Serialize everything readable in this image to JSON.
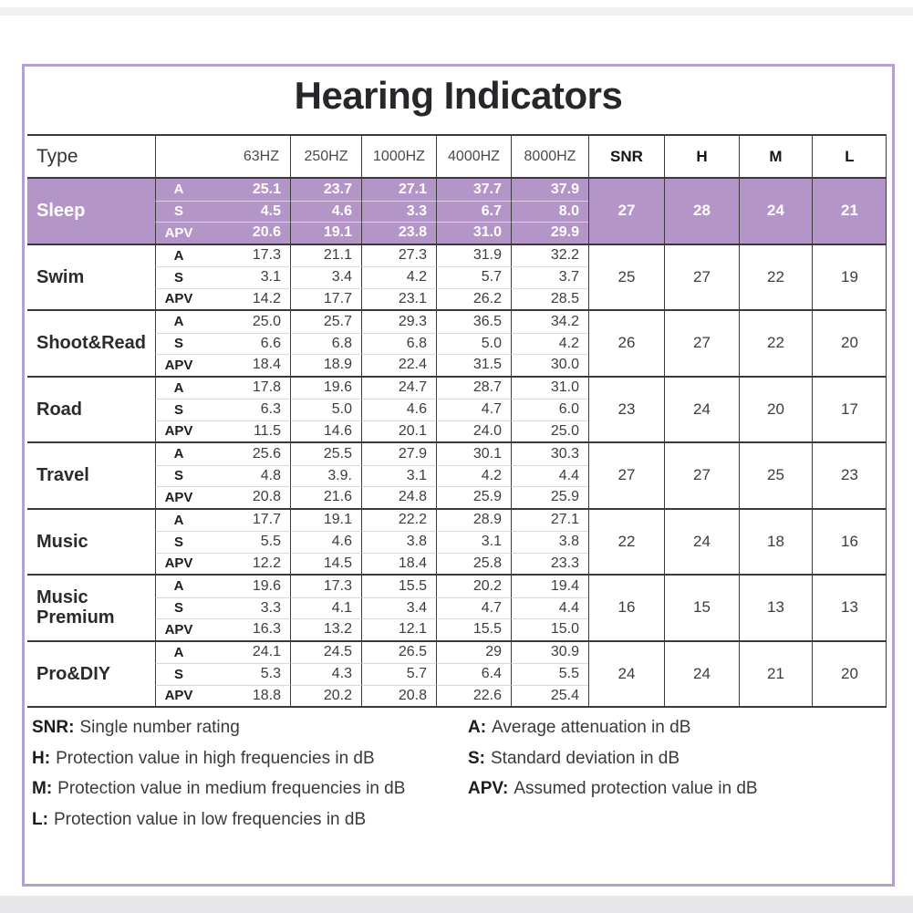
{
  "page": {
    "title": "Hearing Indicators"
  },
  "colors": {
    "highlight_row_bg": "#b495c7",
    "box_border": "#b4a1d1",
    "grid_line_dark": "#3a3a3a",
    "grid_line_light": "#d8d8d8",
    "highlight_text": "#ffffff"
  },
  "table": {
    "type_header": "Type",
    "freq_columns": [
      "63HZ",
      "250HZ",
      "1000HZ",
      "4000HZ",
      "8000HZ"
    ],
    "summary_columns": [
      "SNR",
      "H",
      "M",
      "L"
    ],
    "sub_row_labels": [
      "A",
      "S",
      "APV"
    ],
    "rows": [
      {
        "type": "Sleep",
        "highlighted": true,
        "sub_rows": [
          {
            "label": "A",
            "values": [
              "25.1",
              "23.7",
              "27.1",
              "37.7",
              "37.9"
            ]
          },
          {
            "label": "S",
            "values": [
              "4.5",
              "4.6",
              "3.3",
              "6.7",
              "8.0"
            ]
          },
          {
            "label": "APV",
            "values": [
              "20.6",
              "19.1",
              "23.8",
              "31.0",
              "29.9"
            ]
          }
        ],
        "SNR": "27",
        "H": "28",
        "M": "24",
        "L": "21"
      },
      {
        "type": "Swim",
        "highlighted": false,
        "sub_rows": [
          {
            "label": "A",
            "values": [
              "17.3",
              "21.1",
              "27.3",
              "31.9",
              "32.2"
            ]
          },
          {
            "label": "S",
            "values": [
              "3.1",
              "3.4",
              "4.2",
              "5.7",
              "3.7"
            ]
          },
          {
            "label": "APV",
            "values": [
              "14.2",
              "17.7",
              "23.1",
              "26.2",
              "28.5"
            ]
          }
        ],
        "SNR": "25",
        "H": "27",
        "M": "22",
        "L": "19"
      },
      {
        "type": "Shoot&Read",
        "highlighted": false,
        "sub_rows": [
          {
            "label": "A",
            "values": [
              "25.0",
              "25.7",
              "29.3",
              "36.5",
              "34.2"
            ]
          },
          {
            "label": "S",
            "values": [
              "6.6",
              "6.8",
              "6.8",
              "5.0",
              "4.2"
            ]
          },
          {
            "label": "APV",
            "values": [
              "18.4",
              "18.9",
              "22.4",
              "31.5",
              "30.0"
            ]
          }
        ],
        "SNR": "26",
        "H": "27",
        "M": "22",
        "L": "20"
      },
      {
        "type": "Road",
        "highlighted": false,
        "sub_rows": [
          {
            "label": "A",
            "values": [
              "17.8",
              "19.6",
              "24.7",
              "28.7",
              "31.0"
            ]
          },
          {
            "label": "S",
            "values": [
              "6.3",
              "5.0",
              "4.6",
              "4.7",
              "6.0"
            ]
          },
          {
            "label": "APV",
            "values": [
              "11.5",
              "14.6",
              "20.1",
              "24.0",
              "25.0"
            ]
          }
        ],
        "SNR": "23",
        "H": "24",
        "M": "20",
        "L": "17"
      },
      {
        "type": "Travel",
        "highlighted": false,
        "sub_rows": [
          {
            "label": "A",
            "values": [
              "25.6",
              "25.5",
              "27.9",
              "30.1",
              "30.3"
            ]
          },
          {
            "label": "S",
            "values": [
              "4.8",
              "3.9.",
              "3.1",
              "4.2",
              "4.4"
            ]
          },
          {
            "label": "APV",
            "values": [
              "20.8",
              "21.6",
              "24.8",
              "25.9",
              "25.9"
            ]
          }
        ],
        "SNR": "27",
        "H": "27",
        "M": "25",
        "L": "23"
      },
      {
        "type": "Music",
        "highlighted": false,
        "sub_rows": [
          {
            "label": "A",
            "values": [
              "17.7",
              "19.1",
              "22.2",
              "28.9",
              "27.1"
            ]
          },
          {
            "label": "S",
            "values": [
              "5.5",
              "4.6",
              "3.8",
              "3.1",
              "3.8"
            ]
          },
          {
            "label": "APV",
            "values": [
              "12.2",
              "14.5",
              "18.4",
              "25.8",
              "23.3"
            ]
          }
        ],
        "SNR": "22",
        "H": "24",
        "M": "18",
        "L": "16"
      },
      {
        "type": "Music Premium",
        "highlighted": false,
        "sub_rows": [
          {
            "label": "A",
            "values": [
              "19.6",
              "17.3",
              "15.5",
              "20.2",
              "19.4"
            ]
          },
          {
            "label": "S",
            "values": [
              "3.3",
              "4.1",
              "3.4",
              "4.7",
              "4.4"
            ]
          },
          {
            "label": "APV",
            "values": [
              "16.3",
              "13.2",
              "12.1",
              "15.5",
              "15.0"
            ]
          }
        ],
        "SNR": "16",
        "H": "15",
        "M": "13",
        "L": "13"
      },
      {
        "type": "Pro&DIY",
        "highlighted": false,
        "sub_rows": [
          {
            "label": "A",
            "values": [
              "24.1",
              "24.5",
              "26.5",
              "29",
              "30.9"
            ]
          },
          {
            "label": "S",
            "values": [
              "5.3",
              "4.3",
              "5.7",
              "6.4",
              "5.5"
            ]
          },
          {
            "label": "APV",
            "values": [
              "18.8",
              "20.2",
              "20.8",
              "22.6",
              "25.4"
            ]
          }
        ],
        "SNR": "24",
        "H": "24",
        "M": "21",
        "L": "20"
      }
    ]
  },
  "legend": {
    "left": [
      {
        "term": "SNR:",
        "desc": "Single number rating"
      },
      {
        "term": "H:",
        "desc": "Protection value in high frequencies in dB"
      },
      {
        "term": "M:",
        "desc": "Protection value in medium frequencies in dB"
      },
      {
        "term": "L:",
        "desc": "Protection value in low frequencies in dB"
      }
    ],
    "right": [
      {
        "term": "A:",
        "desc": "Average attenuation in dB"
      },
      {
        "term": "S:",
        "desc": "Standard deviation in dB"
      },
      {
        "term": "APV:",
        "desc": "Assumed protection value in dB"
      }
    ]
  }
}
